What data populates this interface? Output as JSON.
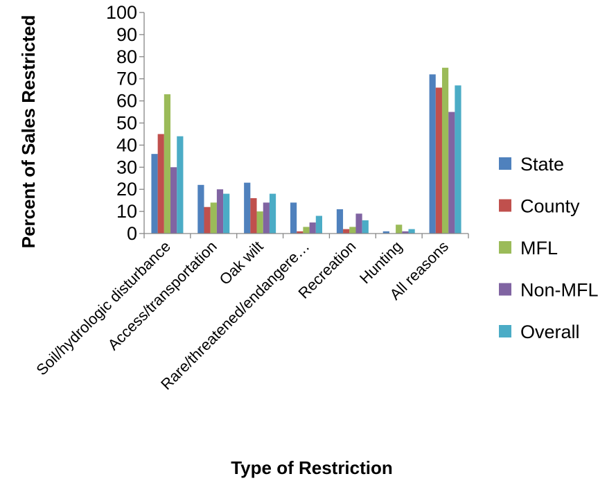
{
  "chart_data": {
    "type": "bar",
    "title": "",
    "xlabel": "Type of Restriction",
    "ylabel": "Percent of Sales Restricted",
    "ylim": [
      0,
      100
    ],
    "yticks": [
      0,
      10,
      20,
      30,
      40,
      50,
      60,
      70,
      80,
      90,
      100
    ],
    "grid": false,
    "legend_position": "right",
    "categories": [
      "Soil/hydrologic disturbance",
      "Access/transportation",
      "Oak wilt",
      "Rare/threatened/endangere…",
      "Recreation",
      "Hunting",
      "All reasons"
    ],
    "series": [
      {
        "name": "State",
        "color": "#4F81BD",
        "values": [
          36,
          22,
          23,
          14,
          11,
          1,
          72
        ]
      },
      {
        "name": "County",
        "color": "#C0504D",
        "values": [
          45,
          12,
          16,
          1,
          2,
          0,
          66
        ]
      },
      {
        "name": "MFL",
        "color": "#9BBB59",
        "values": [
          63,
          14,
          10,
          3,
          3,
          4,
          75
        ]
      },
      {
        "name": "Non-MFL",
        "color": "#8064A2",
        "values": [
          30,
          20,
          14,
          5,
          9,
          1,
          55
        ]
      },
      {
        "name": "Overall",
        "color": "#4BACC6",
        "values": [
          44,
          18,
          18,
          8,
          6,
          2,
          67
        ]
      }
    ]
  }
}
